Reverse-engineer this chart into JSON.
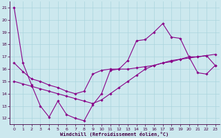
{
  "xlabel": "Windchill (Refroidissement éolien,°C)",
  "background_color": "#cce8ee",
  "grid_color": "#aad4dd",
  "line_color": "#880088",
  "ylim": [
    11.5,
    21.5
  ],
  "xlim": [
    -0.5,
    23.5
  ],
  "yticks": [
    12,
    13,
    14,
    15,
    16,
    17,
    18,
    19,
    20,
    21
  ],
  "xticks": [
    0,
    1,
    2,
    3,
    4,
    5,
    6,
    7,
    8,
    9,
    10,
    11,
    12,
    13,
    14,
    15,
    16,
    17,
    18,
    19,
    20,
    21,
    22,
    23
  ],
  "line1_x": [
    0,
    1,
    2,
    3,
    4,
    5,
    6,
    7,
    8,
    9,
    10,
    11,
    12,
    13,
    14,
    15,
    16,
    17,
    18,
    19,
    20,
    21,
    22,
    23
  ],
  "line1_y": [
    21.0,
    16.5,
    14.7,
    13.0,
    12.1,
    13.4,
    12.3,
    12.0,
    11.8,
    13.1,
    14.0,
    15.9,
    16.0,
    16.7,
    18.3,
    18.4,
    19.0,
    19.7,
    18.6,
    18.5,
    17.0,
    15.7,
    15.6,
    16.3
  ],
  "line2_x": [
    0,
    1,
    2,
    3,
    4,
    5,
    6,
    7,
    8,
    9,
    10,
    11,
    12,
    13,
    14,
    15,
    16,
    17,
    18,
    19,
    20,
    21,
    22,
    23
  ],
  "line2_y": [
    16.5,
    15.8,
    15.2,
    15.0,
    14.7,
    14.5,
    14.2,
    14.0,
    14.2,
    15.6,
    15.9,
    16.0,
    16.0,
    16.0,
    16.1,
    16.2,
    16.3,
    16.5,
    16.6,
    16.8,
    17.0,
    17.0,
    17.1,
    16.3
  ],
  "line3_x": [
    0,
    1,
    2,
    3,
    4,
    5,
    6,
    7,
    8,
    9,
    10,
    11,
    12,
    13,
    14,
    15,
    16,
    17,
    18,
    19,
    20,
    21,
    22,
    23
  ],
  "line3_y": [
    15.0,
    14.8,
    14.6,
    14.4,
    14.2,
    14.0,
    13.8,
    13.6,
    13.4,
    13.2,
    13.5,
    14.0,
    14.5,
    15.0,
    15.5,
    16.0,
    16.3,
    16.5,
    16.7,
    16.8,
    16.9,
    17.0,
    17.1,
    17.2
  ]
}
